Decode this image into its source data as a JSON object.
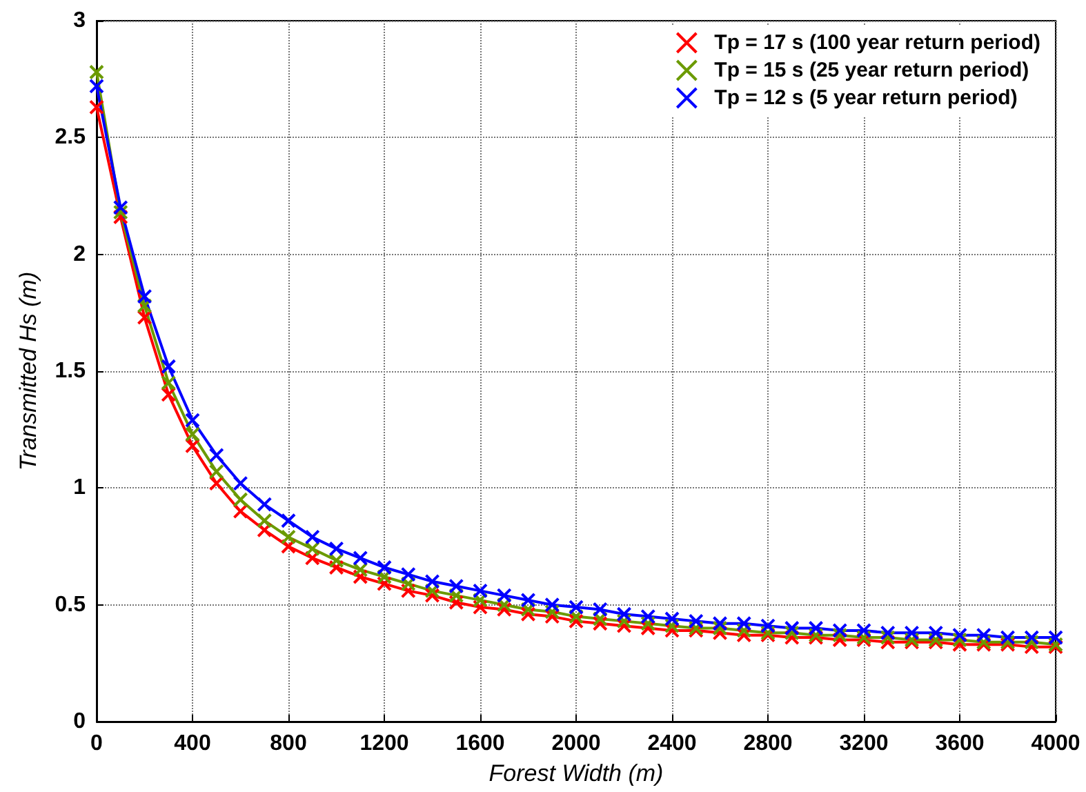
{
  "chart_data": {
    "type": "line",
    "xlabel": "Forest Width (m)",
    "ylabel": "Transmitted Hs (m)",
    "x": [
      0,
      100,
      200,
      300,
      400,
      500,
      600,
      700,
      800,
      900,
      1000,
      1100,
      1200,
      1300,
      1400,
      1500,
      1600,
      1700,
      1800,
      1900,
      2000,
      2100,
      2200,
      2300,
      2400,
      2500,
      2600,
      2700,
      2800,
      2900,
      3000,
      3100,
      3200,
      3300,
      3400,
      3500,
      3600,
      3700,
      3800,
      3900,
      4000
    ],
    "series": [
      {
        "name": "Tp = 17 s (100 year return period)",
        "color": "#ff0000",
        "values": [
          2.63,
          2.16,
          1.73,
          1.4,
          1.18,
          1.02,
          0.9,
          0.82,
          0.75,
          0.7,
          0.66,
          0.62,
          0.59,
          0.56,
          0.54,
          0.51,
          0.49,
          0.48,
          0.46,
          0.45,
          0.43,
          0.42,
          0.41,
          0.4,
          0.39,
          0.39,
          0.38,
          0.37,
          0.37,
          0.36,
          0.36,
          0.35,
          0.35,
          0.34,
          0.34,
          0.34,
          0.33,
          0.33,
          0.33,
          0.32,
          0.32
        ]
      },
      {
        "name": "Tp = 15 s (25 year return period)",
        "color": "#6b9a00",
        "values": [
          2.78,
          2.18,
          1.78,
          1.45,
          1.23,
          1.07,
          0.95,
          0.86,
          0.79,
          0.74,
          0.69,
          0.65,
          0.62,
          0.59,
          0.56,
          0.54,
          0.52,
          0.5,
          0.48,
          0.47,
          0.45,
          0.44,
          0.43,
          0.42,
          0.41,
          0.4,
          0.4,
          0.39,
          0.38,
          0.38,
          0.37,
          0.37,
          0.36,
          0.36,
          0.35,
          0.35,
          0.35,
          0.34,
          0.34,
          0.34,
          0.33
        ]
      },
      {
        "name": "Tp = 12 s (5 year return period)",
        "color": "#0000ff",
        "values": [
          2.72,
          2.2,
          1.82,
          1.52,
          1.29,
          1.14,
          1.02,
          0.93,
          0.86,
          0.79,
          0.74,
          0.7,
          0.66,
          0.63,
          0.6,
          0.58,
          0.56,
          0.54,
          0.52,
          0.5,
          0.49,
          0.48,
          0.46,
          0.45,
          0.44,
          0.43,
          0.42,
          0.42,
          0.41,
          0.4,
          0.4,
          0.39,
          0.39,
          0.38,
          0.38,
          0.38,
          0.37,
          0.37,
          0.36,
          0.36,
          0.36
        ]
      }
    ],
    "xlim": [
      0,
      4000
    ],
    "xticks": [
      0,
      400,
      800,
      1200,
      1600,
      2000,
      2400,
      2800,
      3200,
      3600,
      4000
    ],
    "ylim": [
      0,
      3
    ],
    "yticks": [
      0,
      0.5,
      1,
      1.5,
      2,
      2.5,
      3
    ],
    "grid": true,
    "legend": "top right",
    "marker": "cross",
    "line_style": "solid"
  }
}
